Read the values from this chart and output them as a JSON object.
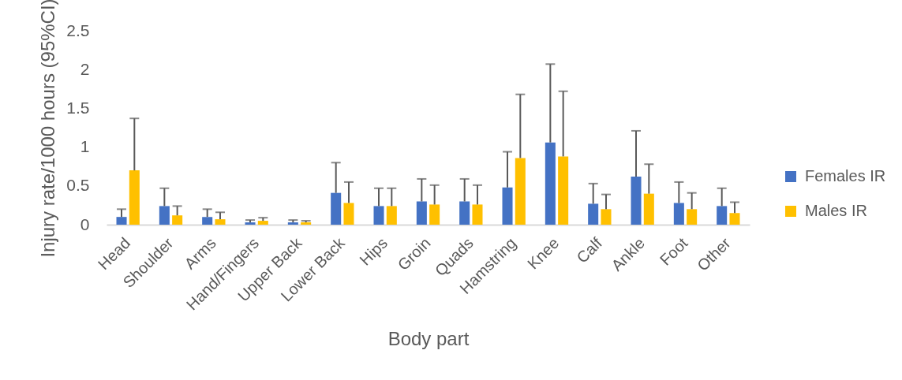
{
  "chart_data": {
    "type": "bar",
    "xlabel": "Body part",
    "ylabel": "Injury rate/1000 hours (95%CI)",
    "categories": [
      "Head",
      "Shoulder",
      "Arms",
      "Hand/Fingers",
      "Upper Back",
      "Lower Back",
      "Hips",
      "Groin",
      "Quads",
      "Hamstring",
      "Knee",
      "Calf",
      "Ankle",
      "Foot",
      "Other"
    ],
    "series": [
      {
        "name": "Females IR",
        "color": "#4472c4",
        "values": [
          0.1,
          0.24,
          0.1,
          0.03,
          0.03,
          0.41,
          0.24,
          0.3,
          0.3,
          0.48,
          1.06,
          0.27,
          0.62,
          0.28,
          0.24
        ],
        "errors": [
          [
            0.1,
            0.2
          ],
          [
            0.24,
            0.47
          ],
          [
            0.1,
            0.2
          ],
          [
            0.03,
            0.06
          ],
          [
            0.03,
            0.06
          ],
          [
            0.41,
            0.8
          ],
          [
            0.24,
            0.47
          ],
          [
            0.3,
            0.59
          ],
          [
            0.3,
            0.59
          ],
          [
            0.48,
            0.94
          ],
          [
            1.06,
            2.07
          ],
          [
            0.27,
            0.53
          ],
          [
            0.62,
            1.21
          ],
          [
            0.28,
            0.55
          ],
          [
            0.24,
            0.47
          ]
        ]
      },
      {
        "name": "Males IR",
        "color": "#ffc000",
        "values": [
          0.7,
          0.12,
          0.07,
          0.05,
          0.03,
          0.28,
          0.24,
          0.26,
          0.26,
          0.86,
          0.88,
          0.2,
          0.4,
          0.2,
          0.15
        ],
        "errors": [
          [
            0.7,
            1.37
          ],
          [
            0.12,
            0.24
          ],
          [
            0.07,
            0.16
          ],
          [
            0.05,
            0.09
          ],
          [
            0.03,
            0.05
          ],
          [
            0.28,
            0.55
          ],
          [
            0.24,
            0.47
          ],
          [
            0.26,
            0.51
          ],
          [
            0.26,
            0.51
          ],
          [
            0.86,
            1.68
          ],
          [
            0.88,
            1.72
          ],
          [
            0.2,
            0.39
          ],
          [
            0.4,
            0.78
          ],
          [
            0.2,
            0.41
          ],
          [
            0.15,
            0.29
          ]
        ]
      }
    ],
    "ylim": [
      0,
      2.5
    ],
    "yticks": [
      0,
      0.5,
      1,
      1.5,
      2,
      2.5
    ],
    "grid": false,
    "legend": "right"
  }
}
